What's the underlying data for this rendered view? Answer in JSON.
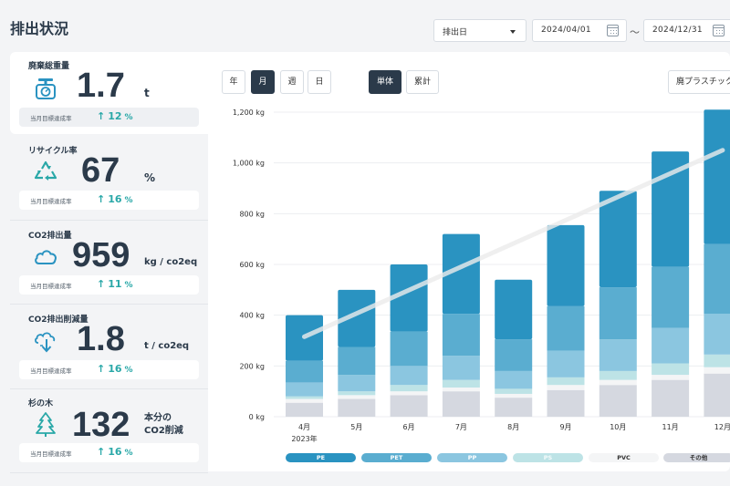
{
  "page": {
    "title": "排出状況"
  },
  "filters": {
    "date_type": "排出日",
    "start_date": "2024/04/01",
    "separator": "～",
    "end_date": "2024/12/31"
  },
  "kpis": [
    {
      "label": "廃棄総重量",
      "icon": "scale-icon",
      "value": "1.7",
      "unit": "t",
      "rate_label": "当月目標達成率",
      "rate_arrow": "↑",
      "rate_value": "12",
      "rate_unit": "%"
    },
    {
      "label": "リサイクル率",
      "icon": "recycle-icon",
      "value": "67",
      "unit": "%",
      "rate_label": "当月目標達成率",
      "rate_arrow": "↑",
      "rate_value": "16",
      "rate_unit": "%"
    },
    {
      "label": "CO2排出量",
      "icon": "cloud-icon",
      "value": "959",
      "unit": "kg / co2eq",
      "rate_label": "当月目標達成率",
      "rate_arrow": "↑",
      "rate_value": "11",
      "rate_unit": "%"
    },
    {
      "label": "CO2排出削減量",
      "icon": "cloud-down-icon",
      "value": "1.8",
      "unit": "t / co2eq",
      "rate_label": "当月目標達成率",
      "rate_arrow": "↑",
      "rate_value": "16",
      "rate_unit": "%"
    },
    {
      "label": "杉の木",
      "icon": "tree-icon",
      "value": "132",
      "unit_line1": "本分の",
      "unit_line2": "CO2削減",
      "rate_label": "当月目標達成率",
      "rate_arrow": "↑",
      "rate_value": "16",
      "rate_unit": "%"
    }
  ],
  "toolbar": {
    "period_buttons": [
      "年",
      "月",
      "週",
      "日"
    ],
    "active_period": "月",
    "mode_buttons": [
      "単体",
      "累計"
    ],
    "active_mode": "単体",
    "material_select": "廃プラスチック"
  },
  "colors": {
    "PE": "#2a93c1",
    "PET": "#5aadd0",
    "PP": "#8bc6e0",
    "PS": "#bde3e6",
    "PVC": "#f4f5f6",
    "その他": "#d5d8e0",
    "trend": "#ececec"
  },
  "chart_data": {
    "type": "bar",
    "stacked": true,
    "categories": [
      "4月",
      "5月",
      "6月",
      "7月",
      "8月",
      "9月",
      "10月",
      "11月",
      "12月"
    ],
    "year_label": "2023年",
    "ylim": [
      0,
      1200
    ],
    "yticks": [
      0,
      200,
      400,
      600,
      800,
      1000,
      1200
    ],
    "ytick_labels": [
      "0 kg",
      "200 kg",
      "400 kg",
      "600 kg",
      "800 kg",
      "1,000 kg",
      "1,200 kg"
    ],
    "series": [
      {
        "name": "その他",
        "values": [
          55,
          70,
          85,
          100,
          75,
          105,
          125,
          145,
          170
        ]
      },
      {
        "name": "PVC",
        "values": [
          15,
          15,
          15,
          15,
          15,
          20,
          20,
          20,
          25
        ]
      },
      {
        "name": "PS",
        "values": [
          10,
          15,
          25,
          30,
          20,
          30,
          35,
          45,
          50
        ]
      },
      {
        "name": "PP",
        "values": [
          55,
          65,
          75,
          95,
          70,
          105,
          125,
          140,
          160
        ]
      },
      {
        "name": "PET",
        "values": [
          85,
          110,
          135,
          165,
          125,
          175,
          205,
          240,
          275
        ]
      },
      {
        "name": "PE",
        "values": [
          180,
          225,
          265,
          315,
          235,
          320,
          380,
          455,
          530
        ]
      }
    ],
    "trend": {
      "start": 315,
      "end": 1050
    },
    "legend": [
      "PE",
      "PET",
      "PP",
      "PS",
      "PVC",
      "その他"
    ]
  }
}
